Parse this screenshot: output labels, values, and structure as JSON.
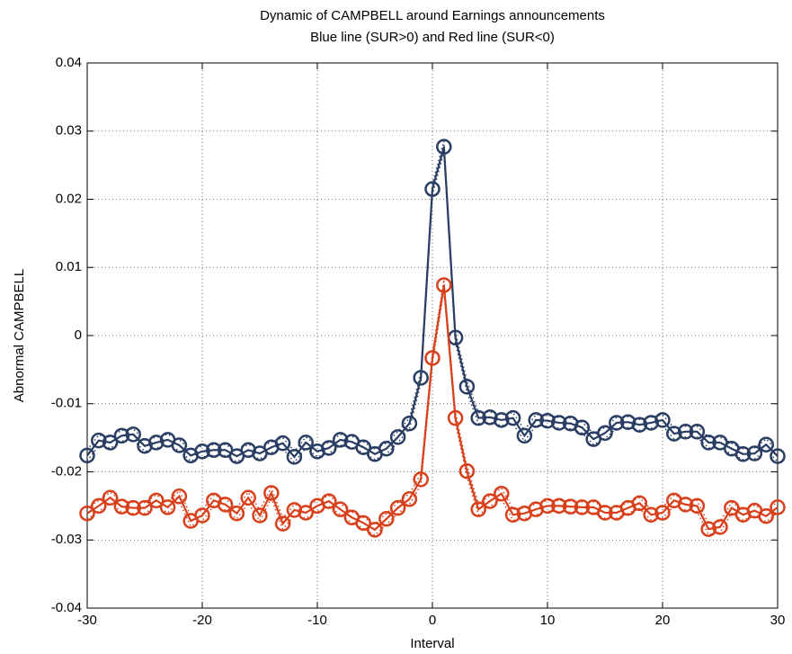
{
  "chart_data": {
    "type": "line",
    "title": "Dynamic of CAMPBELL around Earnings announcements",
    "subtitle": "Blue line (SUR>0) and Red line (SUR<0)",
    "x_label": "Interval",
    "y_label": "Abnormal CAMPBELL",
    "x": [
      -30,
      -29,
      -28,
      -27,
      -26,
      -25,
      -24,
      -23,
      -22,
      -21,
      -20,
      -19,
      -18,
      -17,
      -16,
      -15,
      -14,
      -13,
      -12,
      -11,
      -10,
      -9,
      -8,
      -7,
      -6,
      -5,
      -4,
      -3,
      -2,
      -1,
      0,
      1,
      2,
      3,
      4,
      5,
      6,
      7,
      8,
      9,
      10,
      11,
      12,
      13,
      14,
      15,
      16,
      17,
      18,
      19,
      20,
      21,
      22,
      23,
      24,
      25,
      26,
      27,
      28,
      29,
      30
    ],
    "series": [
      {
        "color": "#2a3d63",
        "band": 0.0008,
        "values": [
          -0.0176,
          -0.0154,
          -0.0157,
          -0.0147,
          -0.0145,
          -0.0162,
          -0.0157,
          -0.0153,
          -0.0161,
          -0.0176,
          -0.017,
          -0.0168,
          -0.0168,
          -0.0177,
          -0.0168,
          -0.0173,
          -0.0164,
          -0.0158,
          -0.0178,
          -0.0157,
          -0.017,
          -0.0165,
          -0.0153,
          -0.0156,
          -0.0164,
          -0.0174,
          -0.0166,
          -0.0149,
          -0.0129,
          -0.0062,
          0.0215,
          0.0277,
          -0.0003,
          -0.0075,
          -0.0121,
          -0.012,
          -0.0124,
          -0.0121,
          -0.0147,
          -0.0124,
          -0.0125,
          -0.0128,
          -0.0129,
          -0.0135,
          -0.0152,
          -0.0143,
          -0.0128,
          -0.0127,
          -0.0131,
          -0.0128,
          -0.0124,
          -0.0144,
          -0.0141,
          -0.0141,
          -0.0157,
          -0.0157,
          -0.0166,
          -0.0174,
          -0.0173,
          -0.016,
          -0.0177
        ]
      },
      {
        "color": "#d8401c",
        "band": 0.0008,
        "values": [
          -0.0261,
          -0.025,
          -0.0238,
          -0.0251,
          -0.0253,
          -0.0253,
          -0.0242,
          -0.0252,
          -0.0236,
          -0.0272,
          -0.0264,
          -0.0242,
          -0.0248,
          -0.0261,
          -0.0238,
          -0.0264,
          -0.0231,
          -0.0276,
          -0.0256,
          -0.026,
          -0.025,
          -0.0243,
          -0.0255,
          -0.0267,
          -0.0275,
          -0.0285,
          -0.0269,
          -0.0253,
          -0.024,
          -0.0211,
          -0.0033,
          0.0074,
          -0.0121,
          -0.0199,
          -0.0255,
          -0.0243,
          -0.0232,
          -0.0263,
          -0.0261,
          -0.0255,
          -0.025,
          -0.025,
          -0.0251,
          -0.0252,
          -0.0252,
          -0.026,
          -0.026,
          -0.0253,
          -0.0246,
          -0.0263,
          -0.026,
          -0.0242,
          -0.0248,
          -0.025,
          -0.0284,
          -0.0281,
          -0.0253,
          -0.0263,
          -0.0257,
          -0.0265,
          -0.0252
        ]
      }
    ],
    "xlim": [
      -30,
      30
    ],
    "xticks": [
      -30,
      -20,
      -10,
      0,
      10,
      20,
      30
    ],
    "ylim": [
      -0.04,
      0.04
    ],
    "yticks": [
      -0.04,
      -0.03,
      -0.02,
      -0.01,
      0,
      0.01,
      0.02,
      0.03,
      0.04
    ],
    "grid": true
  }
}
